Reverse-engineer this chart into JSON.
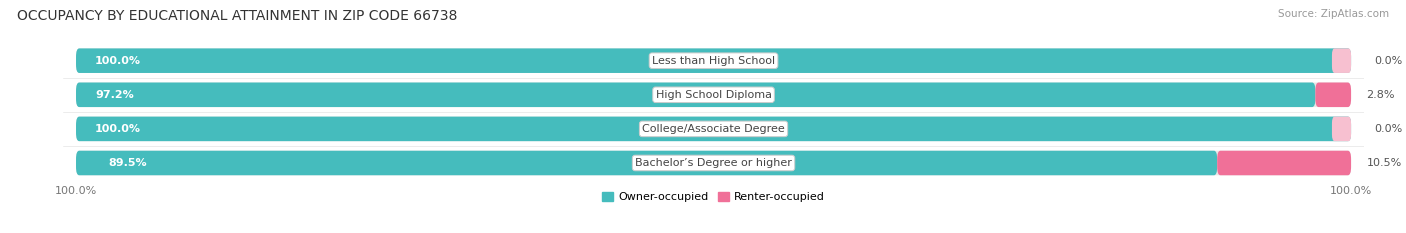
{
  "title": "OCCUPANCY BY EDUCATIONAL ATTAINMENT IN ZIP CODE 66738",
  "source": "Source: ZipAtlas.com",
  "categories": [
    "Less than High School",
    "High School Diploma",
    "College/Associate Degree",
    "Bachelor’s Degree or higher"
  ],
  "owner_values": [
    100.0,
    97.2,
    100.0,
    89.5
  ],
  "renter_values": [
    0.0,
    2.8,
    0.0,
    10.5
  ],
  "owner_color": "#45BCBD",
  "renter_color": "#F07098",
  "renter_light_color": "#F7C0D0",
  "bar_bg_color": "#E8E8E8",
  "background_color": "#FFFFFF",
  "title_fontsize": 10,
  "label_fontsize": 8,
  "tick_fontsize": 8,
  "source_fontsize": 7.5,
  "legend_labels": [
    "Owner-occupied",
    "Renter-occupied"
  ]
}
